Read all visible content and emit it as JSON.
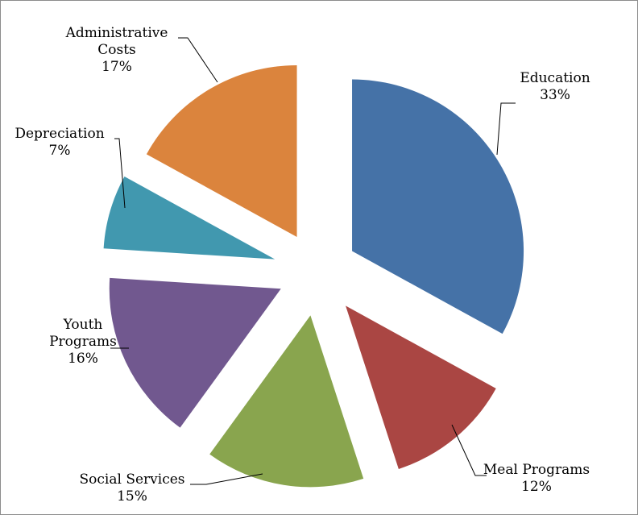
{
  "chart_data": {
    "type": "pie",
    "exploded": true,
    "start_angle_deg": 0,
    "direction": "clockwise",
    "slices": [
      {
        "label_lines": [
          "Education"
        ],
        "value": 33,
        "pct_label": "33%",
        "color": "#4572A7"
      },
      {
        "label_lines": [
          "Meal Programs"
        ],
        "value": 12,
        "pct_label": "12%",
        "color": "#AA4643"
      },
      {
        "label_lines": [
          "Social Services"
        ],
        "value": 15,
        "pct_label": "15%",
        "color": "#89A54E"
      },
      {
        "label_lines": [
          "Youth",
          "Programs"
        ],
        "value": 16,
        "pct_label": "16%",
        "color": "#71588F"
      },
      {
        "label_lines": [
          "Depreciation"
        ],
        "value": 7,
        "pct_label": "7%",
        "color": "#4198AF"
      },
      {
        "label_lines": [
          "Administrative",
          "Costs"
        ],
        "value": 17,
        "pct_label": "17%",
        "color": "#DB843D"
      }
    ]
  }
}
